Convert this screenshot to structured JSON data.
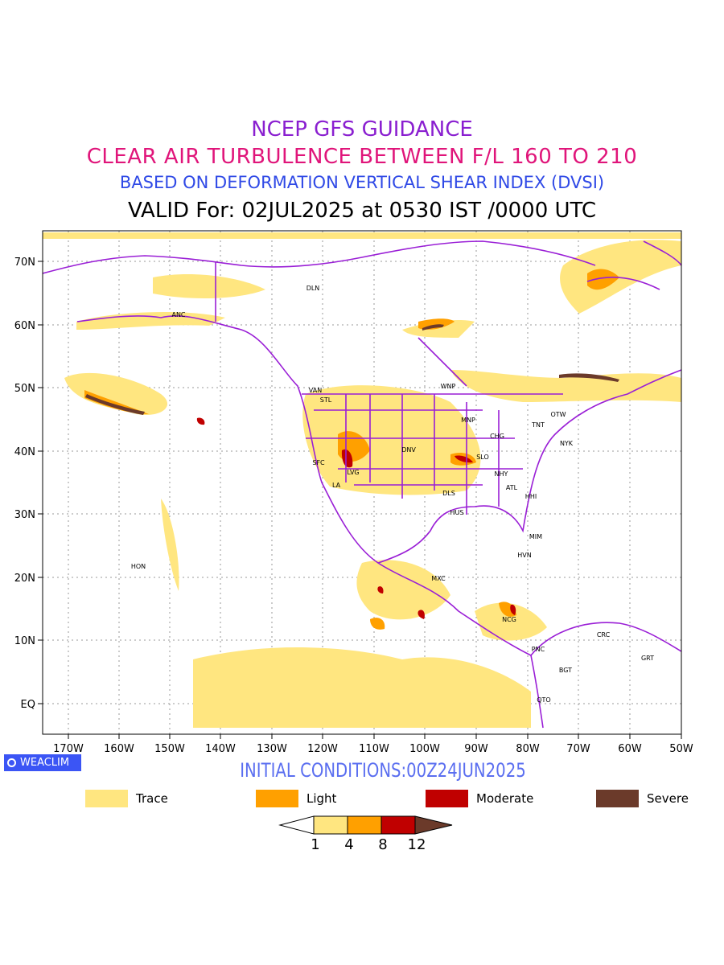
{
  "header": {
    "line1": "NCEP GFS GUIDANCE",
    "line2": "CLEAR AIR TURBULENCE BETWEEN F/L 160 TO 210",
    "line3": "BASED ON DEFORMATION VERTICAL SHEAR INDEX (DVSI)",
    "line4": "VALID For: 02JUL2025 at 0530 IST /0000 UTC"
  },
  "axes": {
    "lat_labels": [
      "70N",
      "60N",
      "50N",
      "40N",
      "30N",
      "20N",
      "10N",
      "EQ"
    ],
    "lon_labels": [
      "170W",
      "160W",
      "150W",
      "140W",
      "130W",
      "120W",
      "110W",
      "100W",
      "90W",
      "80W",
      "70W",
      "60W",
      "50W"
    ]
  },
  "stations": [
    "DLN",
    "ANC",
    "VAN",
    "STL",
    "WNP",
    "OTW",
    "TNT",
    "MNP",
    "CHG",
    "NYK",
    "DNV",
    "SLO",
    "SFC",
    "LVG",
    "LA",
    "NHY",
    "ATL",
    "DLS",
    "HHI",
    "HUS",
    "MIM",
    "HVN",
    "HON",
    "MXC",
    "NCG",
    "CRC",
    "PNC",
    "GRT",
    "BGT",
    "QTO"
  ],
  "logo": {
    "text": "WEACLIM"
  },
  "initial_conditions": "INITIAL CONDITIONS:00Z24JUN2025",
  "legend": [
    {
      "label": "Trace",
      "color": "#ffe680"
    },
    {
      "label": "Light",
      "color": "#ffa000"
    },
    {
      "label": "Moderate",
      "color": "#c00000"
    },
    {
      "label": "Severe",
      "color": "#6b3a2a"
    }
  ],
  "colorbar": {
    "ticks": [
      "1",
      "4",
      "8",
      "12"
    ]
  }
}
